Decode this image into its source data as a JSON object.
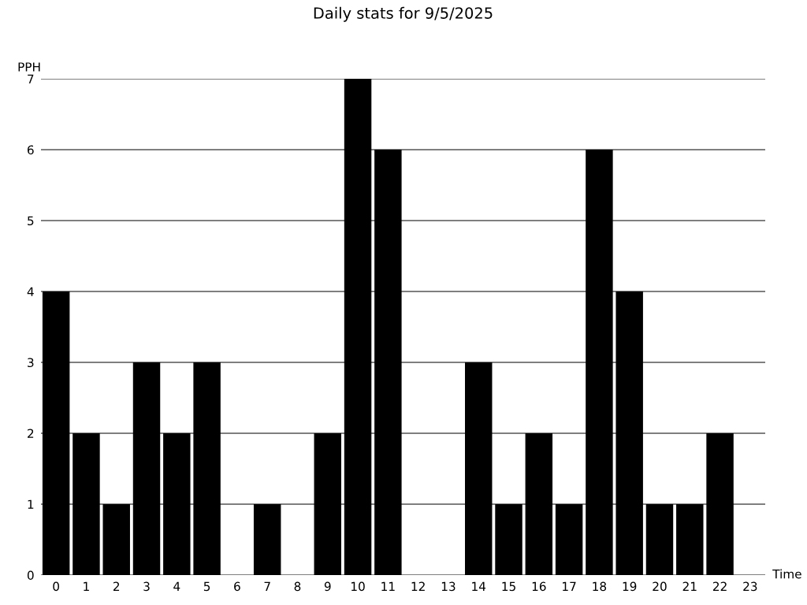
{
  "chart_data": {
    "type": "bar",
    "title": "Daily stats for 9/5/2025",
    "xlabel": "Time",
    "ylabel": "PPH",
    "categories": [
      "0",
      "1",
      "2",
      "3",
      "4",
      "5",
      "6",
      "7",
      "8",
      "9",
      "10",
      "11",
      "12",
      "13",
      "14",
      "15",
      "16",
      "17",
      "18",
      "19",
      "20",
      "21",
      "22",
      "23"
    ],
    "values": [
      4,
      2,
      1,
      3,
      2,
      3,
      0,
      1,
      0,
      2,
      7,
      6,
      0,
      0,
      3,
      1,
      2,
      1,
      6,
      4,
      1,
      1,
      2,
      0
    ],
    "color": "#000000",
    "ylim": [
      0,
      7
    ],
    "yticks": [
      0,
      1,
      2,
      3,
      4,
      5,
      6,
      7
    ],
    "grid": "y",
    "legend": false
  }
}
